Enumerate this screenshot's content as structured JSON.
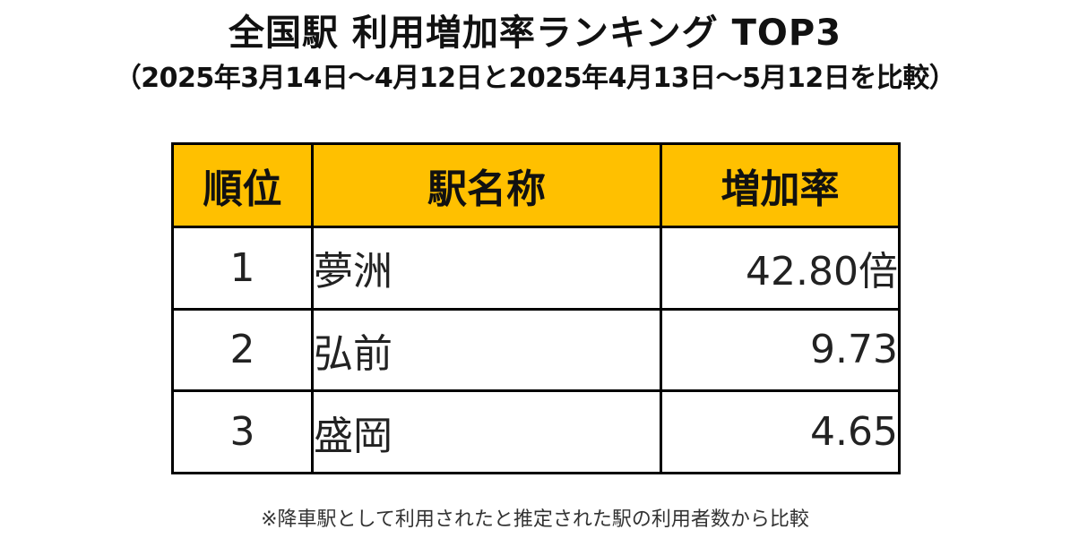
{
  "title": "全国駅 利用増加率ランキング TOP3",
  "subtitle": "（2025年3月14日～4月12日と2025年4月13日～5月12日を比較）",
  "table": {
    "header_color": "#FFC000",
    "headers": {
      "rank": "順位",
      "station": "駅名称",
      "rate": "増加率"
    },
    "rows": [
      {
        "rank": "1",
        "station": "夢洲",
        "rate": "42.80倍"
      },
      {
        "rank": "2",
        "station": "弘前",
        "rate": "9.73"
      },
      {
        "rank": "3",
        "station": "盛岡",
        "rate": "4.65"
      }
    ]
  },
  "footnote": "※降車駅として利用されたと推定された駅の利用者数から比較"
}
